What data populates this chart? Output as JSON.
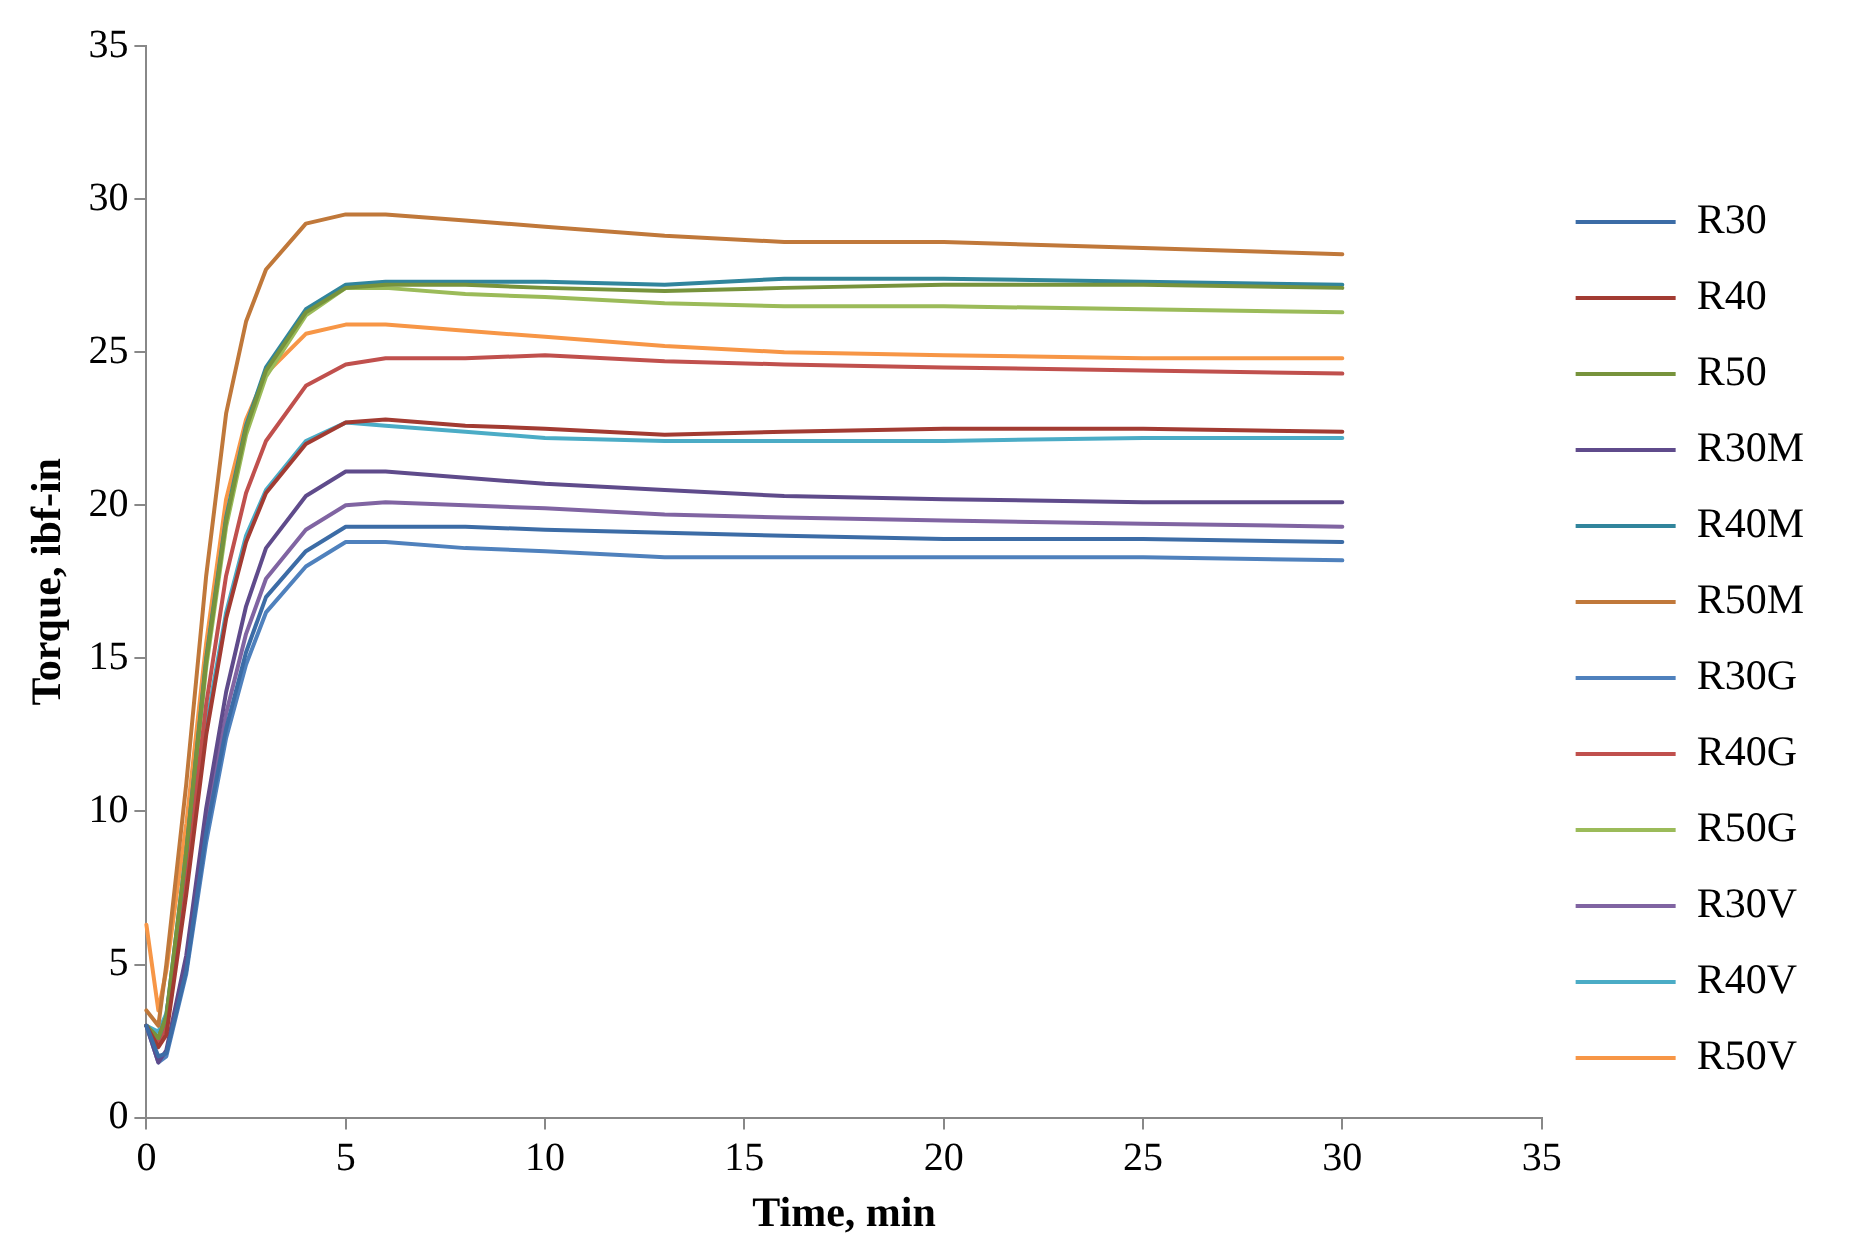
{
  "chart_data": {
    "type": "line",
    "xlabel": "Time, min",
    "ylabel": "Torque, ibf-in",
    "x": [
      0,
      0.3,
      0.5,
      1,
      1.5,
      2,
      2.5,
      3,
      4,
      5,
      6,
      8,
      10,
      13,
      16,
      20,
      25,
      30
    ],
    "xlim": [
      0,
      35
    ],
    "xticks": [
      0,
      5,
      10,
      15,
      20,
      25,
      30,
      35
    ],
    "ylim": [
      0,
      35
    ],
    "yticks": [
      0,
      5,
      10,
      15,
      20,
      25,
      30,
      35
    ],
    "grid": false,
    "legend": "right",
    "marker": "none",
    "line_style": "solid",
    "series": [
      {
        "name": "R30",
        "color": "#3c6ca6",
        "values": [
          3,
          2,
          2.1,
          4.8,
          9.3,
          12.7,
          15.2,
          17,
          18.5,
          19.3,
          19.3,
          19.3,
          19.2,
          19.1,
          19,
          18.9,
          18.9,
          18.8
        ]
      },
      {
        "name": "R40",
        "color": "#a23b32",
        "values": [
          3,
          2.3,
          2.7,
          7.3,
          12.5,
          16.3,
          18.8,
          20.4,
          22,
          22.7,
          22.8,
          22.6,
          22.5,
          22.3,
          22.4,
          22.5,
          22.5,
          22.4
        ]
      },
      {
        "name": "R50",
        "color": "#77933c",
        "values": [
          3,
          2.6,
          3.3,
          8.7,
          14.9,
          19.5,
          22.5,
          24.4,
          26.3,
          27.1,
          27.2,
          27.2,
          27.1,
          27,
          27.1,
          27.2,
          27.2,
          27.1
        ]
      },
      {
        "name": "R30M",
        "color": "#5f4b8b",
        "values": [
          3,
          1.8,
          2.2,
          5.3,
          10.1,
          13.9,
          16.7,
          18.6,
          20.3,
          21.1,
          21.1,
          20.9,
          20.7,
          20.5,
          20.3,
          20.2,
          20.1,
          20.1
        ]
      },
      {
        "name": "R40M",
        "color": "#31859c",
        "values": [
          3,
          2.6,
          3.3,
          8.7,
          15,
          19.6,
          22.6,
          24.5,
          26.4,
          27.2,
          27.3,
          27.3,
          27.3,
          27.2,
          27.4,
          27.4,
          27.3,
          27.2
        ]
      },
      {
        "name": "R50M",
        "color": "#c0783a",
        "values": [
          3.5,
          3,
          5,
          10.9,
          17.7,
          23,
          26,
          27.7,
          29.2,
          29.5,
          29.5,
          29.3,
          29.1,
          28.8,
          28.6,
          28.6,
          28.4,
          28.2
        ]
      },
      {
        "name": "R30G",
        "color": "#4f81bd",
        "values": [
          3,
          1.8,
          2,
          4.7,
          9,
          12.4,
          14.8,
          16.5,
          18,
          18.8,
          18.8,
          18.6,
          18.5,
          18.3,
          18.3,
          18.3,
          18.3,
          18.2
        ]
      },
      {
        "name": "R40G",
        "color": "#c0504d",
        "values": [
          3,
          2.4,
          3,
          7.9,
          13.5,
          17.7,
          20.4,
          22.1,
          23.9,
          24.6,
          24.8,
          24.8,
          24.9,
          24.7,
          24.6,
          24.5,
          24.4,
          24.3
        ]
      },
      {
        "name": "R50G",
        "color": "#9bbb59",
        "values": [
          3,
          2.6,
          3.2,
          8.5,
          14.7,
          19.3,
          22.3,
          24.2,
          26.2,
          27.1,
          27.1,
          26.9,
          26.8,
          26.6,
          26.5,
          26.5,
          26.4,
          26.3
        ]
      },
      {
        "name": "R30V",
        "color": "#8064a2",
        "values": [
          3,
          1.9,
          2.1,
          5,
          9.6,
          13.2,
          15.8,
          17.6,
          19.2,
          20,
          20.1,
          20,
          19.9,
          19.7,
          19.6,
          19.5,
          19.4,
          19.3
        ]
      },
      {
        "name": "R40V",
        "color": "#4bacc6",
        "values": [
          3,
          2.8,
          3.4,
          7.6,
          12.8,
          16.5,
          19,
          20.5,
          22.1,
          22.7,
          22.6,
          22.4,
          22.2,
          22.1,
          22.1,
          22.1,
          22.2,
          22.2
        ]
      },
      {
        "name": "R50V",
        "color": "#f79646",
        "values": [
          6.3,
          3.5,
          4.8,
          9.6,
          15.5,
          20.2,
          22.8,
          24.3,
          25.6,
          25.9,
          25.9,
          25.7,
          25.5,
          25.2,
          25,
          24.9,
          24.8,
          24.8
        ]
      }
    ]
  }
}
